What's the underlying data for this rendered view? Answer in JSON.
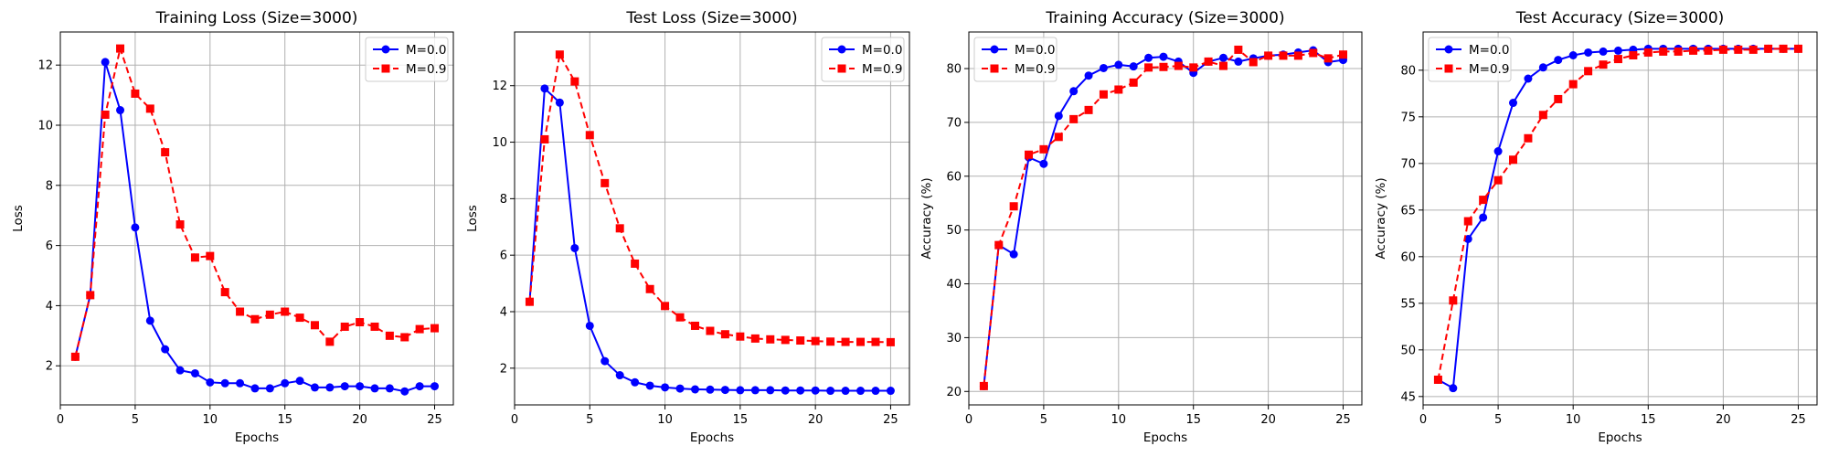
{
  "chart_data": [
    {
      "type": "line",
      "title": "Training Loss (Size=3000)",
      "xlabel": "Epochs",
      "ylabel": "Loss",
      "xlim": [
        0,
        26.25
      ],
      "ylim": [
        0.7,
        13.1
      ],
      "xticks": [
        0,
        5,
        10,
        15,
        20,
        25
      ],
      "yticks": [
        2,
        4,
        6,
        8,
        10,
        12
      ],
      "grid": true,
      "legend": "top-right",
      "x": [
        1,
        2,
        3,
        4,
        5,
        6,
        7,
        8,
        9,
        10,
        11,
        12,
        13,
        14,
        15,
        16,
        17,
        18,
        19,
        20,
        21,
        22,
        23,
        24,
        25
      ],
      "series": [
        {
          "name": "M=0.0",
          "color": "#0000ff",
          "marker": "circle",
          "linestyle": "solid",
          "values": [
            2.3,
            4.35,
            12.1,
            10.5,
            6.6,
            3.5,
            2.55,
            1.85,
            1.75,
            1.45,
            1.42,
            1.42,
            1.25,
            1.25,
            1.42,
            1.5,
            1.28,
            1.28,
            1.32,
            1.32,
            1.25,
            1.25,
            1.15,
            1.32,
            1.32
          ]
        },
        {
          "name": "M=0.9",
          "color": "#ff0000",
          "marker": "square",
          "linestyle": "dashed",
          "values": [
            2.3,
            4.35,
            10.35,
            12.55,
            11.05,
            10.55,
            9.1,
            6.7,
            5.6,
            5.65,
            4.45,
            3.8,
            3.55,
            3.7,
            3.8,
            3.6,
            3.35,
            2.8,
            3.3,
            3.45,
            3.3,
            3.0,
            2.95,
            3.22,
            3.25
          ]
        }
      ]
    },
    {
      "type": "line",
      "title": "Test Loss (Size=3000)",
      "xlabel": "Epochs",
      "ylabel": "Loss",
      "xlim": [
        0,
        26.25
      ],
      "ylim": [
        0.7,
        13.9
      ],
      "xticks": [
        0,
        5,
        10,
        15,
        20,
        25
      ],
      "yticks": [
        2,
        4,
        6,
        8,
        10,
        12
      ],
      "grid": true,
      "legend": "top-right",
      "x": [
        1,
        2,
        3,
        4,
        5,
        6,
        7,
        8,
        9,
        10,
        11,
        12,
        13,
        14,
        15,
        16,
        17,
        18,
        19,
        20,
        21,
        22,
        23,
        24,
        25
      ],
      "series": [
        {
          "name": "M=0.0",
          "color": "#0000ff",
          "marker": "circle",
          "linestyle": "solid",
          "values": [
            4.35,
            11.9,
            11.4,
            6.25,
            3.5,
            2.25,
            1.75,
            1.5,
            1.38,
            1.32,
            1.28,
            1.25,
            1.24,
            1.23,
            1.22,
            1.22,
            1.22,
            1.21,
            1.21,
            1.21,
            1.2,
            1.2,
            1.2,
            1.2,
            1.2
          ]
        },
        {
          "name": "M=0.9",
          "color": "#ff0000",
          "marker": "square",
          "linestyle": "dashed",
          "values": [
            4.35,
            10.1,
            13.1,
            12.15,
            10.25,
            8.55,
            6.95,
            5.7,
            4.8,
            4.2,
            3.8,
            3.5,
            3.32,
            3.2,
            3.12,
            3.05,
            3.02,
            3.0,
            2.98,
            2.96,
            2.94,
            2.93,
            2.93,
            2.93,
            2.92
          ]
        }
      ]
    },
    {
      "type": "line",
      "title": "Training Accuracy (Size=3000)",
      "xlabel": "Epochs",
      "ylabel": "Accuracy (%)",
      "xlim": [
        0,
        26.25
      ],
      "ylim": [
        17.5,
        86.8
      ],
      "xticks": [
        0,
        5,
        10,
        15,
        20,
        25
      ],
      "yticks": [
        20,
        30,
        40,
        50,
        60,
        70,
        80
      ],
      "grid": true,
      "legend": "top-left",
      "x": [
        1,
        2,
        3,
        4,
        5,
        6,
        7,
        8,
        9,
        10,
        11,
        12,
        13,
        14,
        15,
        16,
        17,
        18,
        19,
        20,
        21,
        22,
        23,
        24,
        25
      ],
      "series": [
        {
          "name": "M=0.0",
          "color": "#0000ff",
          "marker": "circle",
          "linestyle": "solid",
          "values": [
            21.0,
            47.2,
            45.5,
            63.5,
            62.3,
            71.2,
            75.8,
            78.7,
            80.1,
            80.7,
            80.4,
            82.0,
            82.2,
            81.3,
            79.2,
            81.3,
            82.0,
            81.3,
            81.9,
            82.4,
            82.6,
            83.0,
            83.4,
            81.2,
            81.6
          ]
        },
        {
          "name": "M=0.9",
          "color": "#ff0000",
          "marker": "square",
          "linestyle": "dashed",
          "values": [
            21.0,
            47.2,
            54.4,
            64.0,
            65.0,
            67.3,
            70.6,
            72.3,
            75.2,
            76.1,
            77.4,
            80.2,
            80.3,
            80.5,
            80.2,
            81.3,
            80.5,
            83.5,
            81.2,
            82.4,
            82.4,
            82.4,
            82.9,
            81.9,
            82.6
          ]
        }
      ]
    },
    {
      "type": "line",
      "title": "Test Accuracy (Size=3000)",
      "xlabel": "Epochs",
      "ylabel": "Accuracy (%)",
      "xlim": [
        0,
        26.25
      ],
      "ylim": [
        44.1,
        84.1
      ],
      "xticks": [
        0,
        5,
        10,
        15,
        20,
        25
      ],
      "yticks": [
        45,
        50,
        55,
        60,
        65,
        70,
        75,
        80
      ],
      "grid": true,
      "legend": "top-left",
      "x": [
        1,
        2,
        3,
        4,
        5,
        6,
        7,
        8,
        9,
        10,
        11,
        12,
        13,
        14,
        15,
        16,
        17,
        18,
        19,
        20,
        21,
        22,
        23,
        24,
        25
      ],
      "series": [
        {
          "name": "M=0.0",
          "color": "#0000ff",
          "marker": "circle",
          "linestyle": "solid",
          "values": [
            46.8,
            45.9,
            61.9,
            64.2,
            71.3,
            76.5,
            79.1,
            80.3,
            81.1,
            81.6,
            81.9,
            82.0,
            82.1,
            82.2,
            82.3,
            82.3,
            82.3,
            82.3,
            82.3,
            82.3,
            82.3,
            82.3,
            82.3,
            82.3,
            82.3
          ]
        },
        {
          "name": "M=0.9",
          "color": "#ff0000",
          "marker": "square",
          "linestyle": "dashed",
          "values": [
            46.8,
            55.3,
            63.8,
            66.1,
            68.2,
            70.4,
            72.7,
            75.2,
            76.9,
            78.5,
            79.9,
            80.6,
            81.2,
            81.6,
            81.9,
            82.0,
            82.0,
            82.1,
            82.1,
            82.2,
            82.2,
            82.2,
            82.3,
            82.3,
            82.3
          ]
        }
      ]
    }
  ]
}
